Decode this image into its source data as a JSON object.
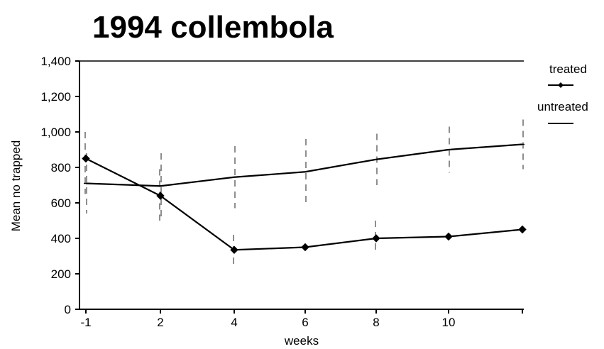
{
  "chart_data": {
    "type": "line",
    "title": "1994 collembola",
    "xlabel": "weeks",
    "ylabel": "Mean no trapped",
    "x": [
      -1,
      2,
      4,
      6,
      8,
      10,
      12
    ],
    "x_ticks": [
      {
        "value": -1,
        "label": "-1"
      },
      {
        "value": 2,
        "label": "2"
      },
      {
        "value": 4,
        "label": "4"
      },
      {
        "value": 6,
        "label": "6"
      },
      {
        "value": 8,
        "label": "8"
      },
      {
        "value": 10,
        "label": "10"
      }
    ],
    "y_ticks": [
      {
        "value": 0,
        "label": "0"
      },
      {
        "value": 200,
        "label": "200"
      },
      {
        "value": 400,
        "label": "400"
      },
      {
        "value": 600,
        "label": "600"
      },
      {
        "value": 800,
        "label": "800"
      },
      {
        "value": 1000,
        "label": "1,000"
      },
      {
        "value": 1200,
        "label": "1,200"
      },
      {
        "value": 1400,
        "label": "1,400"
      }
    ],
    "ylim": [
      0,
      1400
    ],
    "xlim": [
      -1,
      12
    ],
    "grid": false,
    "legend_position": "right",
    "series": [
      {
        "name": "treated",
        "marker": "diamond",
        "color": "#000000",
        "values": [
          850,
          640,
          335,
          350,
          400,
          410,
          450
        ],
        "error_low": [
          650,
          500,
          250,
          350,
          310,
          410,
          450
        ],
        "error_high": [
          1000,
          790,
          420,
          350,
          500,
          410,
          450
        ]
      },
      {
        "name": "untreated",
        "marker": "none",
        "color": "#000000",
        "values": [
          710,
          695,
          745,
          775,
          845,
          900,
          930
        ],
        "error_low": [
          540,
          510,
          570,
          600,
          700,
          770,
          790
        ],
        "error_high": [
          880,
          880,
          920,
          960,
          990,
          1030,
          1070
        ]
      }
    ]
  }
}
